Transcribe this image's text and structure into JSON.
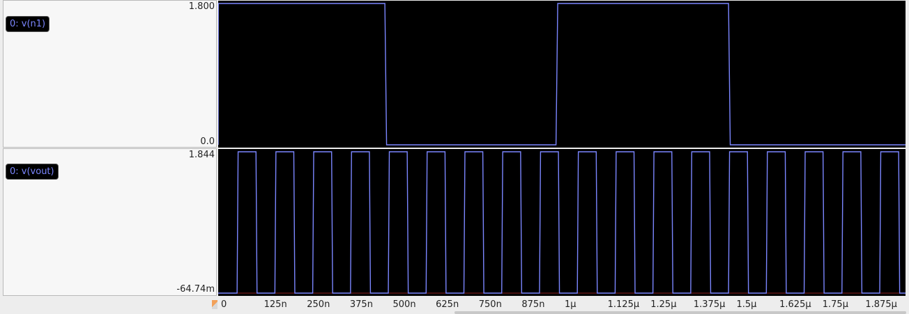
{
  "chart_data": [
    {
      "type": "line",
      "title": "",
      "xlabel": "",
      "ylabel": "",
      "series": [
        {
          "name": "0: v(n1)",
          "color": "#7b86ff",
          "x": [
            0,
            5e-10,
            4.85e-07,
            4.9e-07,
            9.83e-07,
            9.88e-07,
            1.485e-06,
            1.49e-06,
            2e-06
          ],
          "y": [
            0.0,
            1.8,
            1.8,
            0.0,
            0.0,
            1.8,
            1.8,
            0.0,
            0.0
          ]
        }
      ],
      "ylim": [
        0.0,
        1.8
      ],
      "yticks": [
        "1.800",
        "0.0"
      ],
      "xlim": [
        0,
        2e-06
      ]
    },
    {
      "type": "line",
      "title": "",
      "xlabel": "",
      "ylabel": "",
      "series": [
        {
          "name": "0: v(vout)",
          "color": "#7b86ff",
          "period": 1.1e-07,
          "pulse_width": 5.5e-08,
          "first_rise": 5.5e-08,
          "high": 1.844,
          "low": -0.06474
        }
      ],
      "ylim": [
        -0.06474,
        1.844
      ],
      "yticks": [
        "1.844",
        "-64.74m"
      ],
      "xlim": [
        0,
        2e-06
      ],
      "baseline_color": "#8b2020"
    }
  ],
  "xaxis": {
    "tick_values": [
      0,
      1.25e-07,
      2.5e-07,
      3.75e-07,
      5e-07,
      6.25e-07,
      7.5e-07,
      8.75e-07,
      1e-06,
      1.125e-06,
      1.25e-06,
      1.375e-06,
      1.5e-06,
      1.625e-06,
      1.75e-06,
      1.875e-06
    ],
    "tick_labels": [
      "0",
      "125n",
      "250n",
      "375n",
      "500n",
      "625n",
      "750n",
      "875n",
      "1µ",
      "1.125µ",
      "1.25µ",
      "1.375µ",
      "1.5µ",
      "1.625µ",
      "1.75µ",
      "1.875µ"
    ]
  }
}
